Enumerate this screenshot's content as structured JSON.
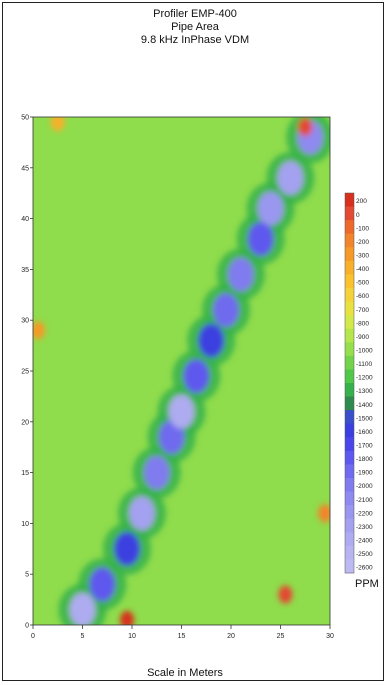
{
  "title_lines": [
    "Profiler EMP-400",
    "Pipe Area",
    "9.8 kHz InPhase VDM"
  ],
  "chart_data": {
    "type": "heatmap",
    "title": "Profiler EMP-400 Pipe Area 9.8 kHz InPhase VDM",
    "xlabel": "Scale in Meters",
    "ylabel": "",
    "xlim": [
      0,
      30
    ],
    "ylim": [
      0,
      50
    ],
    "x_ticks": [
      "0",
      "5",
      "10",
      "15",
      "20",
      "25",
      "30"
    ],
    "y_ticks": [
      "0",
      "5",
      "10",
      "15",
      "20",
      "25",
      "30",
      "35",
      "40",
      "45",
      "50"
    ],
    "colorbar": {
      "unit": "PPM",
      "labels": [
        "200",
        "0",
        "-100",
        "-200",
        "-300",
        "-400",
        "-500",
        "-600",
        "-700",
        "-800",
        "-900",
        "-1000",
        "-1100",
        "-1200",
        "-1300",
        "-1400",
        "-1500",
        "-1600",
        "-1700",
        "-1800",
        "-1900",
        "-2000",
        "-2100",
        "-2200",
        "-2300",
        "-2400",
        "-2500",
        "-2600"
      ],
      "colors": [
        "#d7301f",
        "#e34a33",
        "#ee6a2c",
        "#f2852b",
        "#f59a28",
        "#f8b02a",
        "#f9c22e",
        "#f4d33a",
        "#e8e13f",
        "#d3e84a",
        "#b5e64d",
        "#95de4e",
        "#73d44c",
        "#52c84a",
        "#36b14b",
        "#2f8a4f",
        "#3a4fc9",
        "#3c3fe0",
        "#4a46ea",
        "#5e58ee",
        "#6f6aef",
        "#807cef",
        "#8e8af0",
        "#9a97f0",
        "#a4a1f0",
        "#aeabf0",
        "#b7b4f1",
        "#bdbaf1"
      ]
    },
    "anomaly_track": [
      {
        "x": 5,
        "y": 1.5,
        "value": -2400
      },
      {
        "x": 7,
        "y": 4,
        "value": -1800
      },
      {
        "x": 9.5,
        "y": 7.5,
        "value": -1600
      },
      {
        "x": 11,
        "y": 11,
        "value": -2300
      },
      {
        "x": 12.5,
        "y": 15,
        "value": -2000
      },
      {
        "x": 14,
        "y": 18.5,
        "value": -1900
      },
      {
        "x": 15,
        "y": 21,
        "value": -2400
      },
      {
        "x": 16.5,
        "y": 24.5,
        "value": -1800
      },
      {
        "x": 18,
        "y": 28,
        "value": -1600
      },
      {
        "x": 19.5,
        "y": 31,
        "value": -1900
      },
      {
        "x": 21,
        "y": 34.5,
        "value": -2000
      },
      {
        "x": 23,
        "y": 38,
        "value": -1800
      },
      {
        "x": 24,
        "y": 41,
        "value": -2200
      },
      {
        "x": 26,
        "y": 44,
        "value": -2300
      },
      {
        "x": 28,
        "y": 48,
        "value": -2100
      }
    ],
    "positive_spots": [
      {
        "x": 9.5,
        "y": 0.5,
        "value": 200
      },
      {
        "x": 25.5,
        "y": 3,
        "value": 0
      },
      {
        "x": 29.5,
        "y": 11,
        "value": -200
      },
      {
        "x": 0.5,
        "y": 29,
        "value": -300
      },
      {
        "x": 27.5,
        "y": 49,
        "value": 0
      },
      {
        "x": 2.5,
        "y": 49.5,
        "value": -400
      }
    ]
  }
}
